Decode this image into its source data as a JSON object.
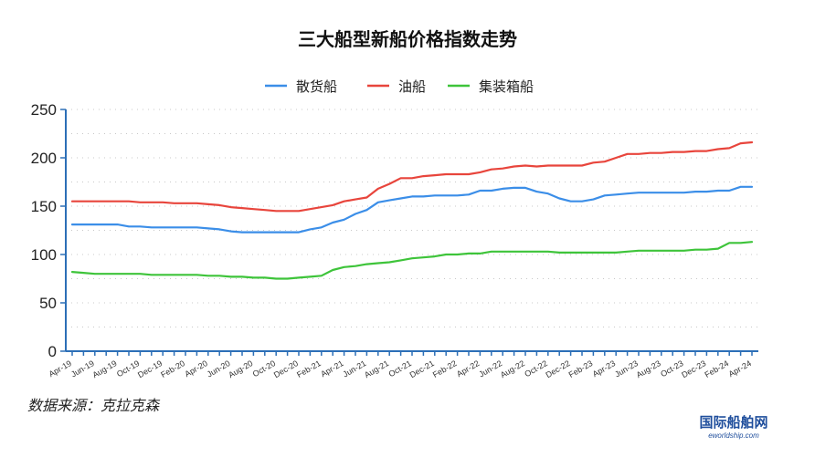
{
  "chart_data": {
    "type": "line",
    "title": "三大船型新船价格指数走势",
    "xlabel": "",
    "ylabel": "",
    "ylim": [
      0,
      250
    ],
    "yticks": [
      0,
      50,
      100,
      150,
      200,
      250
    ],
    "grid": true,
    "legend_position": "top-center",
    "x": [
      "Apr-19",
      "May-19",
      "Jun-19",
      "Jul-19",
      "Aug-19",
      "Sep-19",
      "Oct-19",
      "Nov-19",
      "Dec-19",
      "Jan-20",
      "Feb-20",
      "Mar-20",
      "Apr-20",
      "May-20",
      "Jun-20",
      "Jul-20",
      "Aug-20",
      "Sep-20",
      "Oct-20",
      "Nov-20",
      "Dec-20",
      "Jan-21",
      "Feb-21",
      "Mar-21",
      "Apr-21",
      "May-21",
      "Jun-21",
      "Jul-21",
      "Aug-21",
      "Sep-21",
      "Oct-21",
      "Nov-21",
      "Dec-21",
      "Jan-22",
      "Feb-22",
      "Mar-22",
      "Apr-22",
      "May-22",
      "Jun-22",
      "Jul-22",
      "Aug-22",
      "Sep-22",
      "Oct-22",
      "Nov-22",
      "Dec-22",
      "Jan-23",
      "Feb-23",
      "Mar-23",
      "Apr-23",
      "May-23",
      "Jun-23",
      "Jul-23",
      "Aug-23",
      "Sep-23",
      "Oct-23",
      "Nov-23",
      "Dec-23",
      "Jan-24",
      "Feb-24",
      "Mar-24",
      "Apr-24"
    ],
    "x_tick_labels": [
      "Apr-19",
      "Jun-19",
      "Aug-19",
      "Oct-19",
      "Dec-19",
      "Feb-20",
      "Apr-20",
      "Jun-20",
      "Aug-20",
      "Oct-20",
      "Dec-20",
      "Feb-21",
      "Apr-21",
      "Jun-21",
      "Aug-21",
      "Oct-21",
      "Dec-21",
      "Feb-22",
      "Apr-22",
      "Jun-22",
      "Aug-22",
      "Oct-22",
      "Dec-22",
      "Feb-23",
      "Apr-23",
      "Jun-23",
      "Aug-23",
      "Oct-23",
      "Dec-23",
      "Feb-24",
      "Apr-24"
    ],
    "series": [
      {
        "name": "散货船",
        "color": "#3b8ee8",
        "values": [
          131,
          131,
          131,
          131,
          131,
          129,
          129,
          128,
          128,
          128,
          128,
          128,
          127,
          126,
          124,
          123,
          123,
          123,
          123,
          123,
          123,
          126,
          128,
          133,
          136,
          142,
          146,
          154,
          156,
          158,
          160,
          160,
          161,
          161,
          161,
          162,
          166,
          166,
          168,
          169,
          169,
          165,
          163,
          158,
          155,
          155,
          157,
          161,
          162,
          163,
          164,
          164,
          164,
          164,
          164,
          165,
          165,
          166,
          166,
          170,
          170
        ]
      },
      {
        "name": "油船",
        "color": "#e8453c",
        "values": [
          155,
          155,
          155,
          155,
          155,
          155,
          154,
          154,
          154,
          153,
          153,
          153,
          152,
          151,
          149,
          148,
          147,
          146,
          145,
          145,
          145,
          147,
          149,
          151,
          155,
          157,
          159,
          168,
          173,
          179,
          179,
          181,
          182,
          183,
          183,
          183,
          185,
          188,
          189,
          191,
          192,
          191,
          192,
          192,
          192,
          192,
          195,
          196,
          200,
          204,
          204,
          205,
          205,
          206,
          206,
          207,
          207,
          209,
          210,
          215,
          216
        ]
      },
      {
        "name": "集装箱船",
        "color": "#3ec43a",
        "values": [
          82,
          81,
          80,
          80,
          80,
          80,
          80,
          79,
          79,
          79,
          79,
          79,
          78,
          78,
          77,
          77,
          76,
          76,
          75,
          75,
          76,
          77,
          78,
          84,
          87,
          88,
          90,
          91,
          92,
          94,
          96,
          97,
          98,
          100,
          100,
          101,
          101,
          103,
          103,
          103,
          103,
          103,
          103,
          102,
          102,
          102,
          102,
          102,
          102,
          103,
          104,
          104,
          104,
          104,
          104,
          105,
          105,
          106,
          112,
          112,
          113
        ]
      }
    ]
  },
  "source_text": "数据来源：克拉克森",
  "watermark": {
    "cn": "国际船舶网",
    "en": "eworldship.com"
  }
}
